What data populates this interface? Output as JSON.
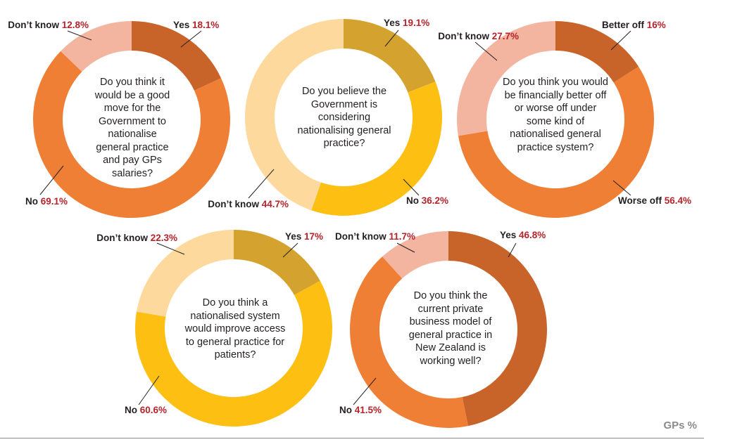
{
  "footer_unit": "GPs %",
  "chart_data": [
    {
      "type": "pie",
      "title": "Do you think it would be a good move for the Government to nationalise general practice and pay GPs salaries?",
      "categories": [
        "Yes",
        "No",
        "Don’t know"
      ],
      "values": [
        18.1,
        69.1,
        12.8
      ],
      "value_labels": [
        "18.1%",
        "69.1%",
        "12.8%"
      ],
      "colors": [
        "#c8632a",
        "#ef7f35",
        "#f3b4a0"
      ]
    },
    {
      "type": "pie",
      "title": "Do you believe the Government is considering nationalising general practice?",
      "categories": [
        "Yes",
        "No",
        "Don’t know"
      ],
      "values": [
        19.1,
        36.2,
        44.7
      ],
      "value_labels": [
        "19.1%",
        "36.2%",
        "44.7%"
      ],
      "colors": [
        "#d4a22e",
        "#fcbf12",
        "#fdd99d"
      ]
    },
    {
      "type": "pie",
      "title": "Do you think you would be financially better off or worse off under some kind of nationalised general practice system?",
      "categories": [
        "Better off",
        "Worse off",
        "Don’t know"
      ],
      "values": [
        16,
        56.4,
        27.7
      ],
      "value_labels": [
        "16%",
        "56.4%",
        "27.7%"
      ],
      "colors": [
        "#c8632a",
        "#ef7f35",
        "#f3b4a0"
      ]
    },
    {
      "type": "pie",
      "title": "Do you think a nationalised system would improve access to general practice for patients?",
      "categories": [
        "Yes",
        "No",
        "Don’t know"
      ],
      "values": [
        17,
        60.6,
        22.3
      ],
      "value_labels": [
        "17%",
        "60.6%",
        "22.3%"
      ],
      "colors": [
        "#d4a22e",
        "#fcbf12",
        "#fdd99d"
      ]
    },
    {
      "type": "pie",
      "title": "Do you think the current private business model of general practice in New Zealand is working well?",
      "categories": [
        "Yes",
        "No",
        "Don’t know"
      ],
      "values": [
        46.8,
        41.5,
        11.7
      ],
      "value_labels": [
        "46.8%",
        "41.5%",
        "11.7%"
      ],
      "colors": [
        "#c8632a",
        "#ef7f35",
        "#f3b4a0"
      ]
    }
  ]
}
